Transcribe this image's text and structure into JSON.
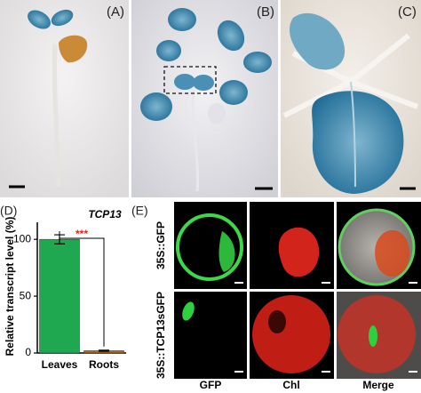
{
  "panels": {
    "a": "(A)",
    "b": "(B)",
    "c": "(C)",
    "d": "(D)",
    "e": "(E)"
  },
  "chart_data": {
    "type": "bar",
    "title": "TCP13",
    "ylabel": "Relative transcript level (%)",
    "categories": [
      "Leaves",
      "Roots"
    ],
    "values": [
      100,
      2
    ],
    "errors": [
      4,
      0.5
    ],
    "colors": [
      "#1fa84f",
      "#b5651d"
    ],
    "ylim": [
      0,
      115
    ],
    "yticks": [
      0,
      50,
      100
    ],
    "annotation": "***"
  },
  "microscopy": {
    "rows": [
      "35S::GFP",
      "35S::TCP13sGFP"
    ],
    "columns": [
      "GFP",
      "Chl",
      "Merge"
    ]
  }
}
